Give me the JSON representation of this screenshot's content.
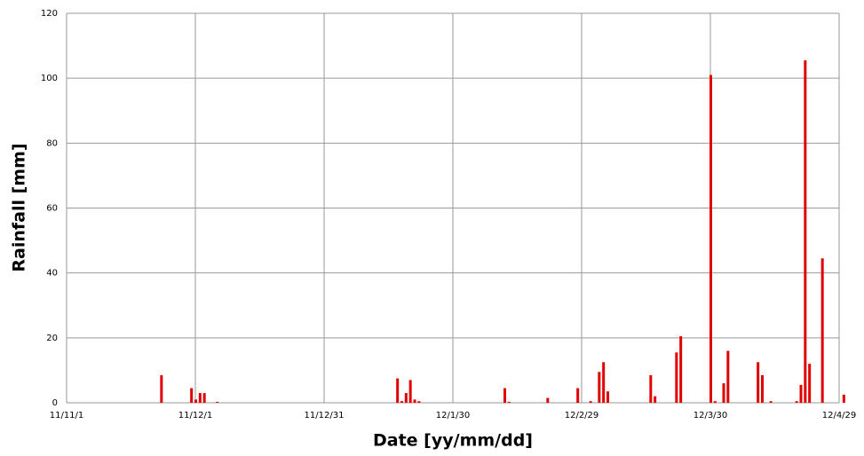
{
  "chart_data": {
    "type": "bar",
    "x_label": "Date [yy/mm/dd]",
    "y_label": "Rainfall [mm]",
    "x": [
      "11/11/23",
      "11/11/30",
      "11/12/1",
      "11/12/2",
      "11/12/3",
      "11/12/6",
      "12/1/17",
      "12/1/18",
      "12/1/19",
      "12/1/20",
      "12/1/21",
      "12/1/22",
      "12/2/11",
      "12/2/12",
      "12/2/21",
      "12/2/28",
      "12/3/2",
      "12/3/4",
      "12/3/5",
      "12/3/6",
      "12/3/16",
      "12/3/17",
      "12/3/22",
      "12/3/23",
      "12/3/30",
      "12/3/31",
      "12/4/2",
      "12/4/3",
      "12/4/10",
      "12/4/11",
      "12/4/13",
      "12/4/19",
      "12/4/20",
      "12/4/21",
      "12/4/22",
      "12/4/25",
      "12/4/30"
    ],
    "values": [
      8.5,
      4.5,
      1,
      3,
      3,
      0.3,
      7.5,
      0.5,
      3,
      7,
      1,
      0.5,
      4.5,
      0.3,
      1.5,
      4.5,
      0.5,
      9.5,
      12.5,
      3.5,
      8.5,
      2,
      15.5,
      20.5,
      101,
      0.5,
      6,
      16,
      12.5,
      8.5,
      0.5,
      0.5,
      5.5,
      105.5,
      12,
      44.5,
      2.5
    ],
    "color": "#e00000",
    "xlim": [
      "11/11/1",
      "12/4/29"
    ],
    "xticks": [
      "11/11/1",
      "11/12/1",
      "11/12/31",
      "12/1/30",
      "12/2/29",
      "12/3/30",
      "12/4/29"
    ],
    "ylim": [
      0,
      120
    ],
    "yticks": [
      0,
      20,
      40,
      60,
      80,
      100,
      120
    ],
    "grid": true
  }
}
